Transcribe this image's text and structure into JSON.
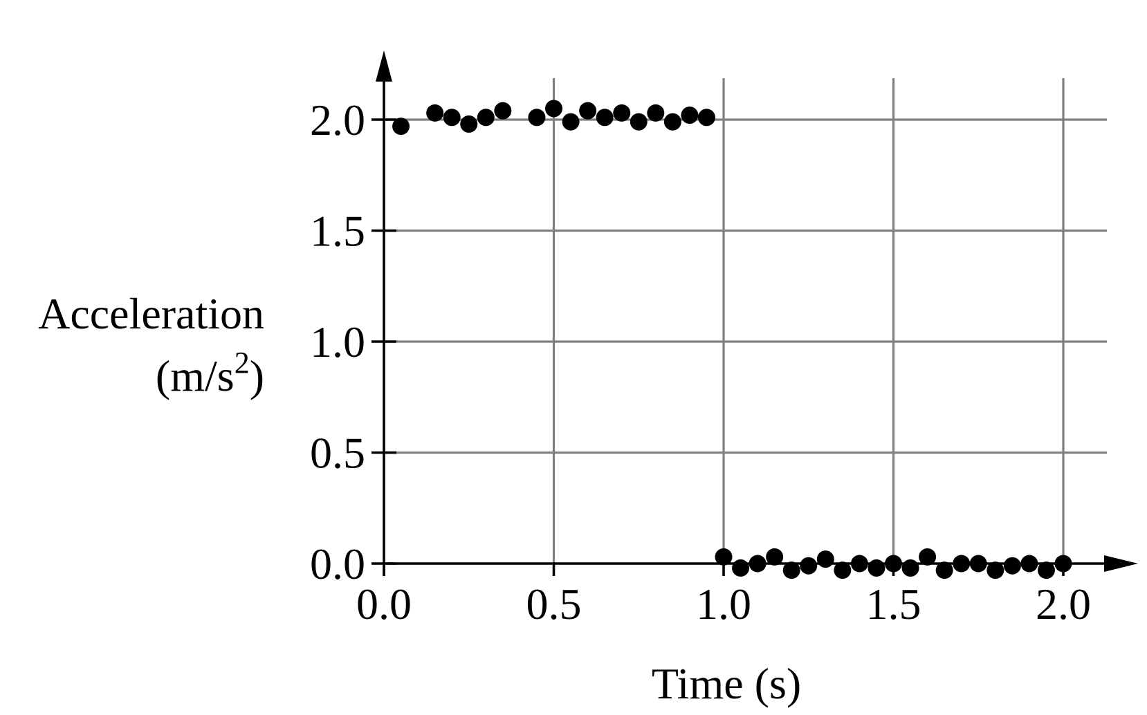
{
  "chart_data": {
    "type": "scatter",
    "title": "",
    "xlabel": "Time (s)",
    "ylabel": {
      "line1": "Acceleration",
      "unit_base": "(m/s",
      "unit_exp": "2",
      "unit_close": ")"
    },
    "xlim": [
      0.0,
      2.0
    ],
    "ylim": [
      0.0,
      2.0
    ],
    "x_ticks": [
      "0.0",
      "0.5",
      "1.0",
      "1.5",
      "2.0"
    ],
    "y_ticks": [
      "0.0",
      "0.5",
      "1.0",
      "1.5",
      "2.0"
    ],
    "grid": true,
    "point_color": "#000000",
    "grid_color": "#808080",
    "series": [
      {
        "points": [
          [
            0.05,
            1.97
          ],
          [
            0.15,
            2.03
          ],
          [
            0.2,
            2.01
          ],
          [
            0.25,
            1.98
          ],
          [
            0.3,
            2.01
          ],
          [
            0.35,
            2.04
          ],
          [
            0.45,
            2.01
          ],
          [
            0.5,
            2.05
          ],
          [
            0.55,
            1.99
          ],
          [
            0.6,
            2.04
          ],
          [
            0.65,
            2.01
          ],
          [
            0.7,
            2.03
          ],
          [
            0.75,
            1.99
          ],
          [
            0.8,
            2.03
          ],
          [
            0.85,
            1.99
          ],
          [
            0.9,
            2.02
          ],
          [
            0.95,
            2.01
          ],
          [
            1.0,
            0.03
          ],
          [
            1.05,
            -0.02
          ],
          [
            1.1,
            0.0
          ],
          [
            1.15,
            0.03
          ],
          [
            1.2,
            -0.03
          ],
          [
            1.25,
            -0.01
          ],
          [
            1.3,
            0.02
          ],
          [
            1.35,
            -0.03
          ],
          [
            1.4,
            0.0
          ],
          [
            1.45,
            -0.02
          ],
          [
            1.5,
            0.0
          ],
          [
            1.55,
            -0.02
          ],
          [
            1.6,
            0.03
          ],
          [
            1.65,
            -0.03
          ],
          [
            1.7,
            0.0
          ],
          [
            1.75,
            0.0
          ],
          [
            1.8,
            -0.03
          ],
          [
            1.85,
            -0.01
          ],
          [
            1.9,
            0.0
          ],
          [
            1.95,
            -0.03
          ],
          [
            2.0,
            0.0
          ]
        ]
      }
    ]
  }
}
